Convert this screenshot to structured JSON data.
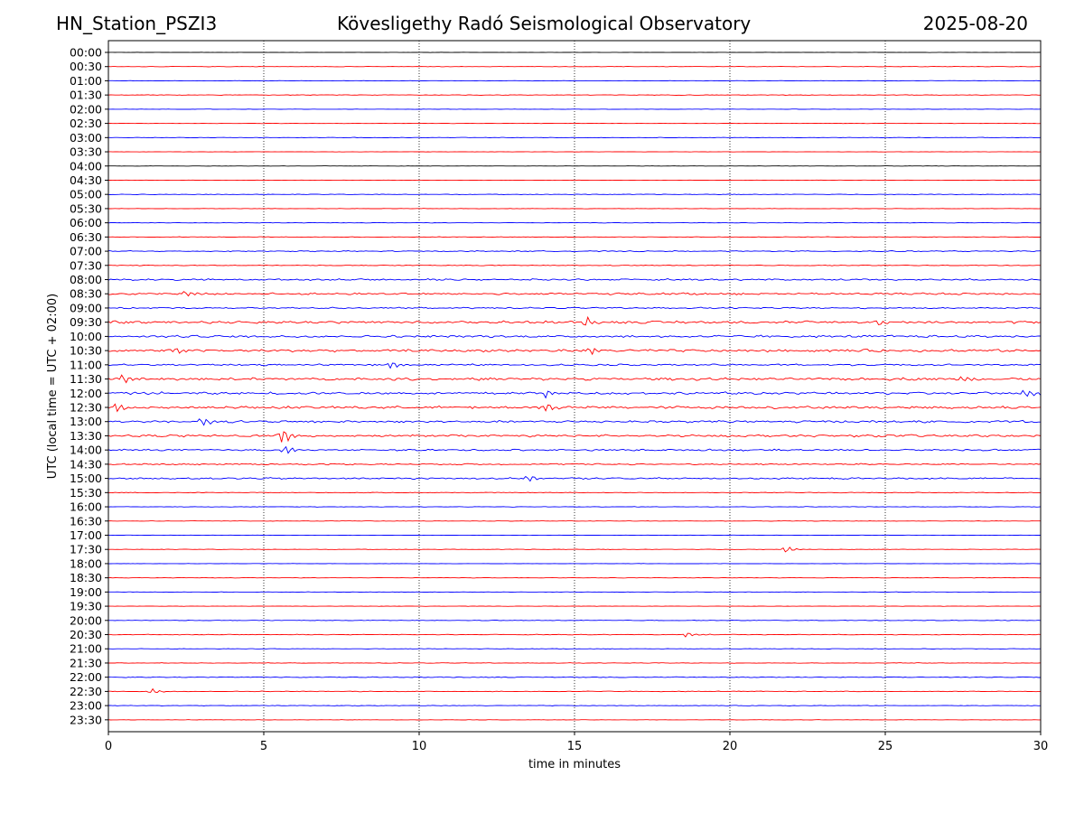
{
  "header": {
    "station": "HN_Station_PSZI3",
    "observatory": "Kövesligethy Radó Seismological Observatory",
    "date": "2025-08-20"
  },
  "chart_data": {
    "type": "line",
    "title": "Kövesligethy Radó Seismological Observatory",
    "xlabel": "time in minutes",
    "ylabel": "UTC (local time = UTC + 02:00)",
    "xlim": [
      0,
      30
    ],
    "xticks": [
      0,
      5,
      10,
      15,
      20,
      25,
      30
    ],
    "grid": "vertical dotted at x ticks",
    "colors": {
      "blue": "#0000ff",
      "red": "#ff0000"
    },
    "series": [
      {
        "label": "00:00",
        "color": "#000000",
        "activity": 0.05
      },
      {
        "label": "00:30",
        "color": "#ff0000",
        "activity": 0.07
      },
      {
        "label": "01:00",
        "color": "#0000ff",
        "activity": 0.08
      },
      {
        "label": "01:30",
        "color": "#ff0000",
        "activity": 0.1
      },
      {
        "label": "02:00",
        "color": "#0000ff",
        "activity": 0.06
      },
      {
        "label": "02:30",
        "color": "#ff0000",
        "activity": 0.06
      },
      {
        "label": "03:00",
        "color": "#0000ff",
        "activity": 0.08
      },
      {
        "label": "03:30",
        "color": "#ff0000",
        "activity": 0.06
      },
      {
        "label": "04:00",
        "color": "#000000",
        "activity": 0.05
      },
      {
        "label": "04:30",
        "color": "#ff0000",
        "activity": 0.06
      },
      {
        "label": "05:00",
        "color": "#0000ff",
        "activity": 0.1
      },
      {
        "label": "05:30",
        "color": "#ff0000",
        "activity": 0.08
      },
      {
        "label": "06:00",
        "color": "#0000ff",
        "activity": 0.08
      },
      {
        "label": "06:30",
        "color": "#ff0000",
        "activity": 0.1
      },
      {
        "label": "07:00",
        "color": "#0000ff",
        "activity": 0.18
      },
      {
        "label": "07:30",
        "color": "#ff0000",
        "activity": 0.14
      },
      {
        "label": "08:00",
        "color": "#0000ff",
        "activity": 0.3
      },
      {
        "label": "08:30",
        "color": "#ff0000",
        "activity": 0.35
      },
      {
        "label": "09:00",
        "color": "#0000ff",
        "activity": 0.25
      },
      {
        "label": "09:30",
        "color": "#ff0000",
        "activity": 0.45
      },
      {
        "label": "10:00",
        "color": "#0000ff",
        "activity": 0.4
      },
      {
        "label": "10:30",
        "color": "#ff0000",
        "activity": 0.45
      },
      {
        "label": "11:00",
        "color": "#0000ff",
        "activity": 0.3
      },
      {
        "label": "11:30",
        "color": "#ff0000",
        "activity": 0.45
      },
      {
        "label": "12:00",
        "color": "#0000ff",
        "activity": 0.45
      },
      {
        "label": "12:30",
        "color": "#ff0000",
        "activity": 0.45
      },
      {
        "label": "13:00",
        "color": "#0000ff",
        "activity": 0.4
      },
      {
        "label": "13:30",
        "color": "#ff0000",
        "activity": 0.4
      },
      {
        "label": "14:00",
        "color": "#0000ff",
        "activity": 0.3
      },
      {
        "label": "14:30",
        "color": "#ff0000",
        "activity": 0.25
      },
      {
        "label": "15:00",
        "color": "#0000ff",
        "activity": 0.3
      },
      {
        "label": "15:30",
        "color": "#ff0000",
        "activity": 0.12
      },
      {
        "label": "16:00",
        "color": "#0000ff",
        "activity": 0.1
      },
      {
        "label": "16:30",
        "color": "#ff0000",
        "activity": 0.08
      },
      {
        "label": "17:00",
        "color": "#0000ff",
        "activity": 0.06
      },
      {
        "label": "17:30",
        "color": "#ff0000",
        "activity": 0.08
      },
      {
        "label": "18:00",
        "color": "#0000ff",
        "activity": 0.06
      },
      {
        "label": "18:30",
        "color": "#ff0000",
        "activity": 0.08
      },
      {
        "label": "19:00",
        "color": "#0000ff",
        "activity": 0.07
      },
      {
        "label": "19:30",
        "color": "#ff0000",
        "activity": 0.06
      },
      {
        "label": "20:00",
        "color": "#0000ff",
        "activity": 0.1
      },
      {
        "label": "20:30",
        "color": "#ff0000",
        "activity": 0.12
      },
      {
        "label": "21:00",
        "color": "#0000ff",
        "activity": 0.08
      },
      {
        "label": "21:30",
        "color": "#ff0000",
        "activity": 0.1
      },
      {
        "label": "22:00",
        "color": "#0000ff",
        "activity": 0.15
      },
      {
        "label": "22:30",
        "color": "#ff0000",
        "activity": 0.12
      },
      {
        "label": "23:00",
        "color": "#0000ff",
        "activity": 0.1
      },
      {
        "label": "23:30",
        "color": "#ff0000",
        "activity": 0.06
      }
    ],
    "events": [
      {
        "row": "08:30",
        "x": 2.5,
        "amp": 0.7
      },
      {
        "row": "09:30",
        "x": 15.4,
        "amp": 0.9
      },
      {
        "row": "09:30",
        "x": 24.8,
        "amp": 0.7
      },
      {
        "row": "10:30",
        "x": 2.2,
        "amp": 0.7
      },
      {
        "row": "10:30",
        "x": 15.5,
        "amp": 0.8
      },
      {
        "row": "11:00",
        "x": 9.1,
        "amp": 0.8
      },
      {
        "row": "11:30",
        "x": 0.5,
        "amp": 0.9
      },
      {
        "row": "11:30",
        "x": 27.5,
        "amp": 0.7
      },
      {
        "row": "12:00",
        "x": 14.1,
        "amp": 0.9
      },
      {
        "row": "12:00",
        "x": 29.5,
        "amp": 0.9
      },
      {
        "row": "12:30",
        "x": 0.3,
        "amp": 0.9
      },
      {
        "row": "12:30",
        "x": 14.1,
        "amp": 0.9
      },
      {
        "row": "13:00",
        "x": 3.0,
        "amp": 1.0
      },
      {
        "row": "13:30",
        "x": 5.6,
        "amp": 1.6
      },
      {
        "row": "14:00",
        "x": 5.7,
        "amp": 0.8
      },
      {
        "row": "15:00",
        "x": 13.5,
        "amp": 0.7
      },
      {
        "row": "17:30",
        "x": 21.8,
        "amp": 0.6
      },
      {
        "row": "20:30",
        "x": 18.6,
        "amp": 0.5
      },
      {
        "row": "22:30",
        "x": 1.4,
        "amp": 0.5
      }
    ]
  }
}
